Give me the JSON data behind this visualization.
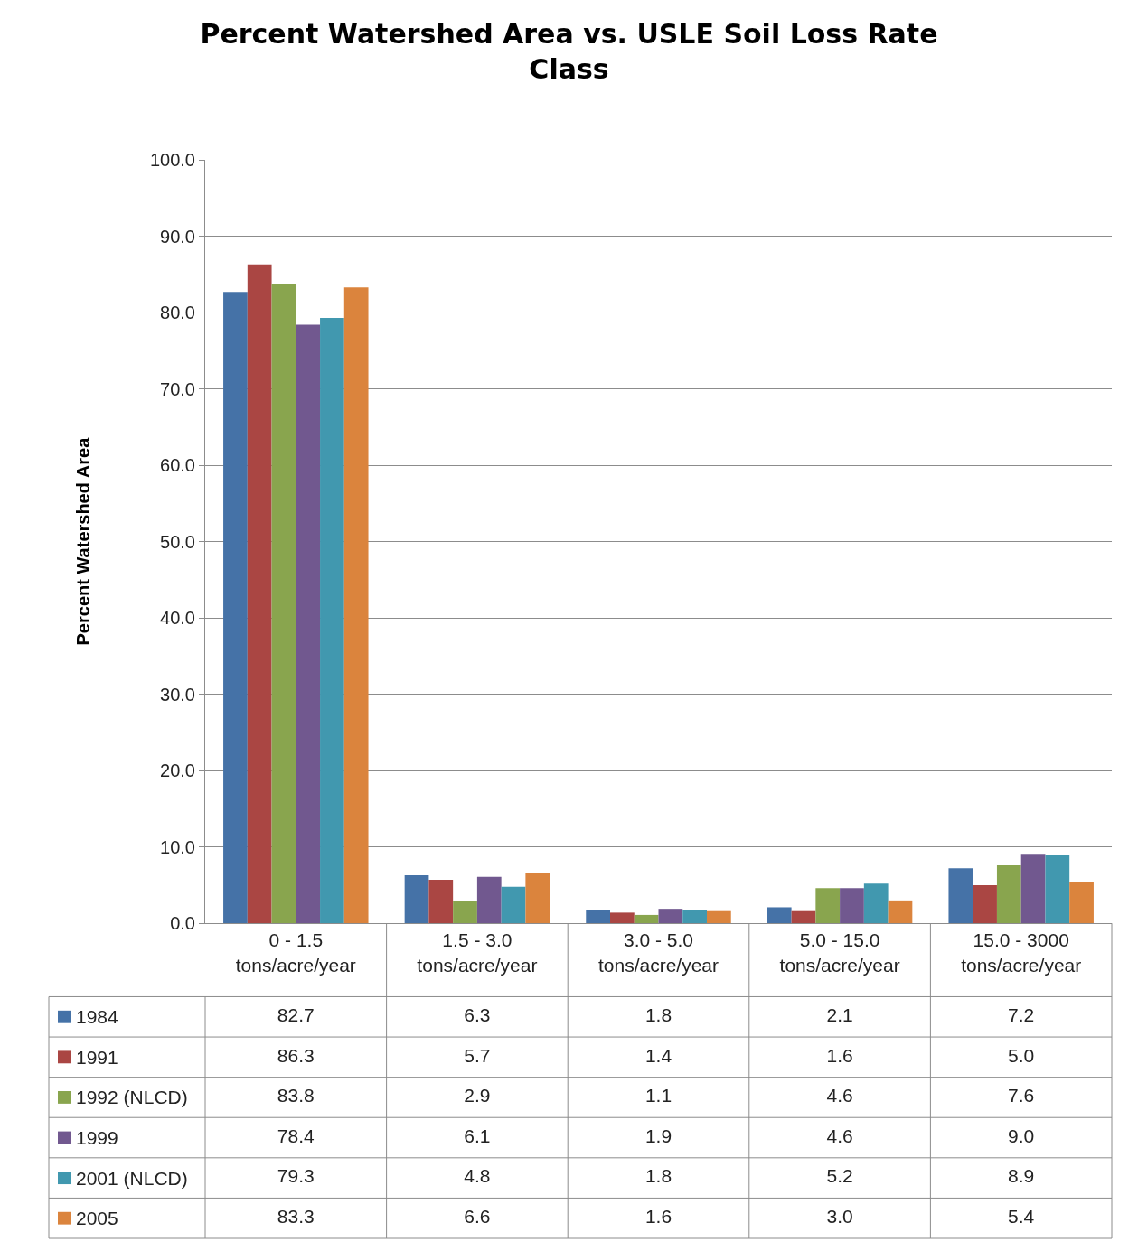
{
  "chart_data": {
    "type": "bar",
    "title": "Percent Watershed Area vs. USLE Soil Loss Rate Class",
    "ylabel": "Percent Watershed Area",
    "categories": [
      "0 - 1.5 tons/acre/year",
      "1.5 - 3.0 tons/acre/year",
      "3.0 - 5.0 tons/acre/year",
      "5.0 - 15.0 tons/acre/year",
      "15.0 - 3000 tons/acre/year"
    ],
    "series": [
      {
        "name": "1984",
        "color": "#4572a7",
        "values": [
          82.7,
          6.3,
          1.8,
          2.1,
          7.2
        ],
        "value_labels": [
          "82.7",
          "6.3",
          "1.8",
          "2.1",
          "7.2"
        ]
      },
      {
        "name": "1991",
        "color": "#aa4643",
        "values": [
          86.3,
          5.7,
          1.4,
          1.6,
          5.0
        ],
        "value_labels": [
          "86.3",
          "5.7",
          "1.4",
          "1.6",
          "5.0"
        ]
      },
      {
        "name": "1992 (NLCD)",
        "color": "#89a54e",
        "values": [
          83.8,
          2.9,
          1.1,
          4.6,
          7.6
        ],
        "value_labels": [
          "83.8",
          "2.9",
          "1.1",
          "4.6",
          "7.6"
        ]
      },
      {
        "name": "1999",
        "color": "#71588f",
        "values": [
          78.4,
          6.1,
          1.9,
          4.6,
          9.0
        ],
        "value_labels": [
          "78.4",
          "6.1",
          "1.9",
          "4.6",
          "9.0"
        ]
      },
      {
        "name": "2001 (NLCD)",
        "color": "#4198af",
        "values": [
          79.3,
          4.8,
          1.8,
          5.2,
          8.9
        ],
        "value_labels": [
          "79.3",
          "4.8",
          "1.8",
          "5.2",
          "8.9"
        ]
      },
      {
        "name": "2005",
        "color": "#db843d",
        "values": [
          83.3,
          6.6,
          1.6,
          3.0,
          5.4
        ],
        "value_labels": [
          "83.3",
          "6.6",
          "1.6",
          "3.0",
          "5.4"
        ]
      }
    ],
    "ylim": [
      0,
      100
    ],
    "yticks": [
      {
        "value": 0,
        "label": "0.0"
      },
      {
        "value": 10,
        "label": "10.0"
      },
      {
        "value": 20,
        "label": "20.0"
      },
      {
        "value": 30,
        "label": "30.0"
      },
      {
        "value": 40,
        "label": "40.0"
      },
      {
        "value": 50,
        "label": "50.0"
      },
      {
        "value": 60,
        "label": "60.0"
      },
      {
        "value": 70,
        "label": "70.0"
      },
      {
        "value": 80,
        "label": "80.0"
      },
      {
        "value": 90,
        "label": "90.0"
      },
      {
        "value": 100,
        "label": "100.0"
      }
    ],
    "grid": "y",
    "legend": "bottom left"
  }
}
